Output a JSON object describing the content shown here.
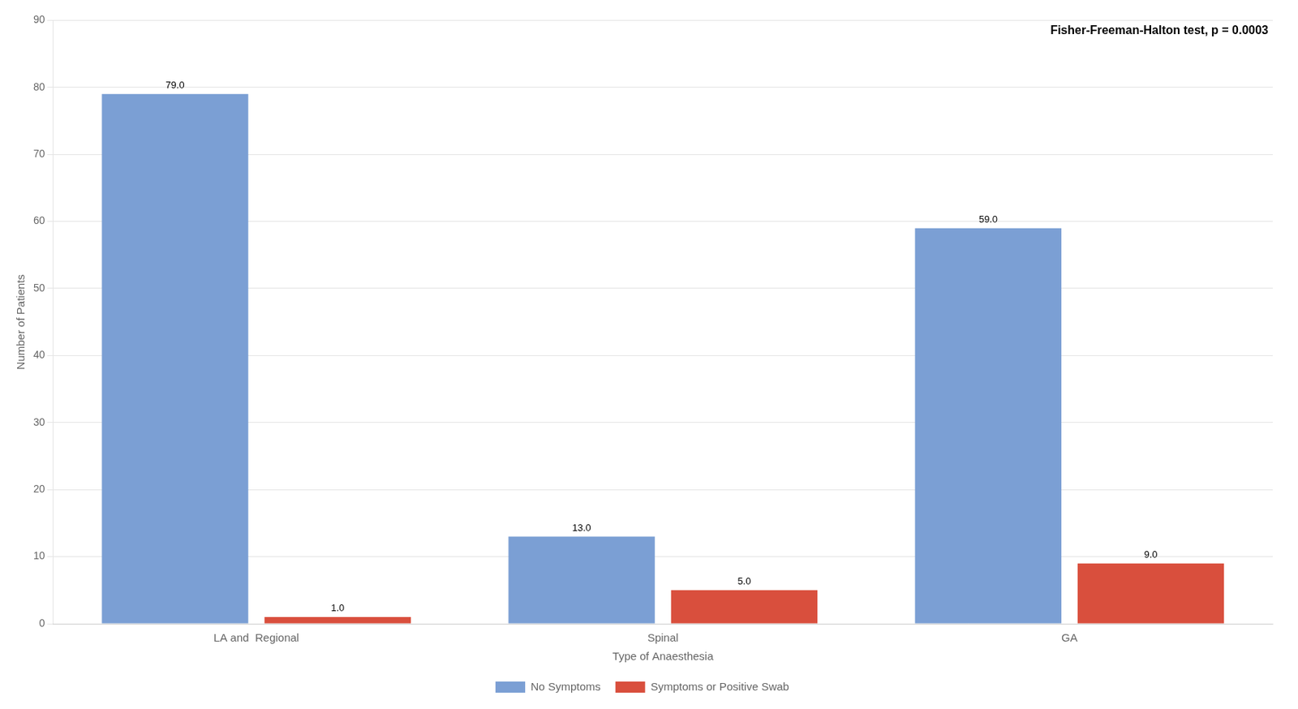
{
  "chart_data": {
    "type": "bar",
    "categories": [
      "LA and  Regional",
      "Spinal",
      "GA"
    ],
    "series": [
      {
        "name": "No Symptoms",
        "color": "#7B9FD4",
        "values": [
          79.0,
          13.0,
          59.0
        ],
        "value_labels": [
          "79.0",
          "13.0",
          "59.0"
        ]
      },
      {
        "name": "Symptoms or Positive Swab",
        "color": "#D94F3D",
        "values": [
          1.0,
          5.0,
          9.0
        ],
        "value_labels": [
          "1.0",
          "5.0",
          "9.0"
        ]
      }
    ],
    "xlabel": "Type of Anaesthesia",
    "ylabel": "Number of Patients",
    "annotation": "Fisher-Freeman-Halton test, p = 0.0003",
    "ylim": [
      0,
      90
    ],
    "yticks": [
      0,
      10,
      20,
      30,
      40,
      50,
      60,
      70,
      80,
      90
    ],
    "grid": true,
    "legend": "bottom",
    "data_labels": true
  }
}
